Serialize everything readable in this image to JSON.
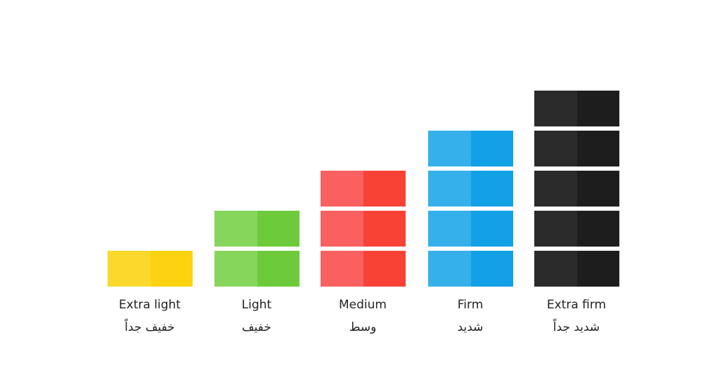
{
  "levels": [
    {
      "label": "Extra light",
      "label_ar": "خفيف جداً",
      "blocks": 1,
      "color_light": "#fbd92c",
      "color_dark": "#fdd311"
    },
    {
      "label": "Light",
      "label_ar": "خفيف",
      "blocks": 2,
      "color_light": "#87d65c",
      "color_dark": "#6dcb3b"
    },
    {
      "label": "Medium",
      "label_ar": "وسط",
      "blocks": 3,
      "color_light": "#f96060",
      "color_dark": "#f74235"
    },
    {
      "label": "Firm",
      "label_ar": "شديد",
      "blocks": 4,
      "color_light": "#36b0ea",
      "color_dark": "#12a0e6"
    },
    {
      "label": "Extra firm",
      "label_ar": "شديد جداً",
      "blocks": 5,
      "color_light": "#2b2b2b",
      "color_dark": "#1d1d1d"
    }
  ]
}
